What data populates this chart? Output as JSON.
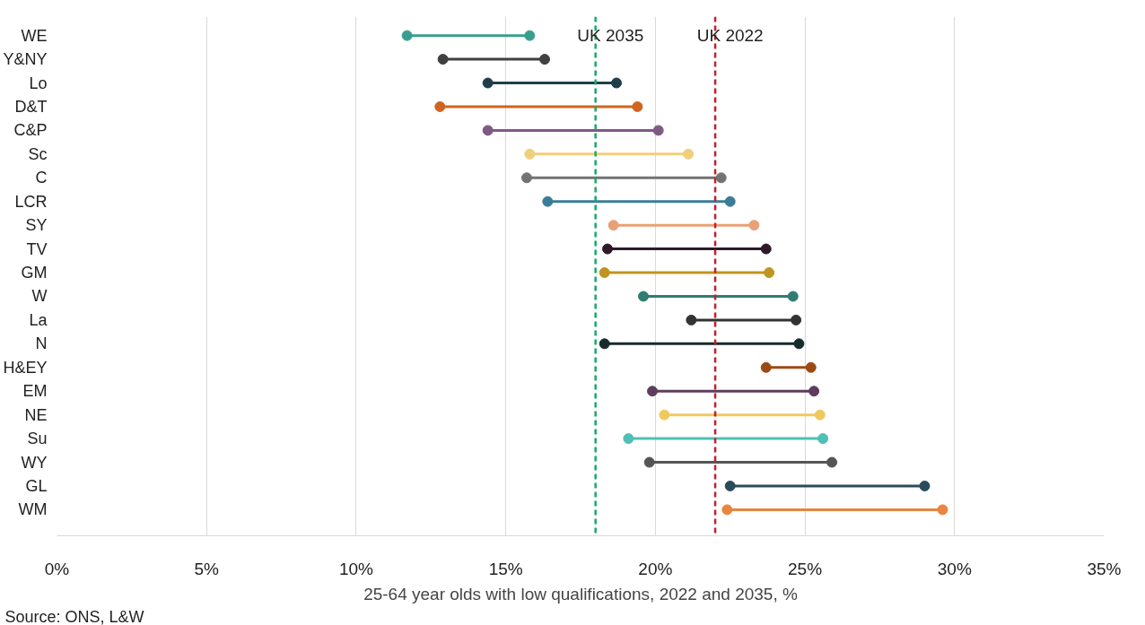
{
  "chart_data": {
    "type": "scatter",
    "orientation": "horizontal",
    "categories": [
      "WE",
      "Y&NY",
      "Lo",
      "D&T",
      "C&P",
      "Sc",
      "C",
      "LCR",
      "SY",
      "TV",
      "GM",
      "W",
      "La",
      "N",
      "H&EY",
      "EM",
      "NE",
      "Su",
      "WY",
      "GL",
      "WM"
    ],
    "series": [
      {
        "colors": [
          "#3a9e8f",
          "#404040",
          "#1f3e4a",
          "#d0641f",
          "#7e5a83",
          "#f0cf7a",
          "#737373",
          "#3b7d96",
          "#e8a077",
          "#2e1a2a",
          "#c0951f",
          "#2e7c73",
          "#333333",
          "#172b2b",
          "#9c4a13",
          "#5e3d5c",
          "#f0c95e",
          "#4fc0b4",
          "#555555",
          "#2a4b5a",
          "#e8853f"
        ],
        "values": [
          11.7,
          12.9,
          14.4,
          12.8,
          14.4,
          15.8,
          15.7,
          16.4,
          18.6,
          18.4,
          18.3,
          19.6,
          21.2,
          18.3,
          23.7,
          19.9,
          20.3,
          19.1,
          19.8,
          22.5,
          22.4
        ]
      },
      {
        "colors": [
          "#3a9e8f",
          "#404040",
          "#1f3e4a",
          "#d0641f",
          "#7e5a83",
          "#f0cf7a",
          "#737373",
          "#3b7d96",
          "#e8a077",
          "#2e1a2a",
          "#c0951f",
          "#2e7c73",
          "#333333",
          "#172b2b",
          "#9c4a13",
          "#5e3d5c",
          "#f0c95e",
          "#4fc0b4",
          "#555555",
          "#2a4b5a",
          "#e8853f"
        ],
        "values": [
          15.8,
          16.3,
          18.7,
          19.4,
          20.1,
          21.1,
          22.2,
          22.5,
          23.3,
          23.7,
          23.8,
          24.6,
          24.7,
          24.8,
          25.2,
          25.3,
          25.5,
          25.6,
          25.9,
          29.0,
          29.6
        ]
      }
    ],
    "xlim": [
      0,
      35
    ],
    "xticks": [
      {
        "value": 0,
        "label": "0%"
      },
      {
        "value": 5,
        "label": "5%"
      },
      {
        "value": 10,
        "label": "10%"
      },
      {
        "value": 15,
        "label": "15%"
      },
      {
        "value": 20,
        "label": "20%"
      },
      {
        "value": 25,
        "label": "25%"
      },
      {
        "value": 30,
        "label": "30%"
      },
      {
        "value": 35,
        "label": "35%"
      }
    ],
    "xlabel": "25-64 year olds with low qualifications, 2022 and 2035, %",
    "ref_lines": [
      {
        "axis": "x",
        "value": 18,
        "label": "UK 2035",
        "color": "#1aa86a",
        "line_style": "dashed"
      },
      {
        "axis": "x",
        "value": 22,
        "label": "UK 2022",
        "color": "#c0202a",
        "line_style": "dashed"
      }
    ],
    "annotations": [
      "Source: ONS, L&W"
    ],
    "grid": "x",
    "marker": "circle"
  }
}
